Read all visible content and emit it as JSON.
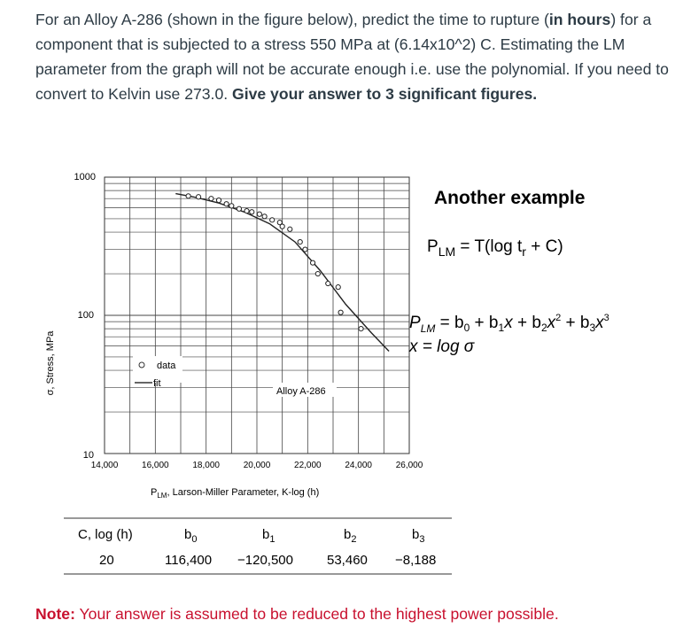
{
  "question": {
    "p1": "For an Alloy A-286 (shown in the figure below), predict the time to rupture (",
    "p1_bold": "in hours",
    "p2": ") for a component that is subjected to a stress 550 MPa at (6.14x10^2) C.  Estimating the LM parameter from the graph will not be accurate enough i.e. use the polynomial.  If you need to convert to Kelvin use 273.0.  ",
    "p2_bold": "Give your answer to 3 significant figures."
  },
  "chart": {
    "ylabel": "σ, Stress, MPa",
    "xlabel": "P",
    "xlabel_sub": "LM",
    "xlabel_rest": ", Larson-Miller Parameter, K-log (h)",
    "yticks": [
      "1000",
      "100",
      "10"
    ],
    "xticks": [
      "14,000",
      "16,000",
      "18,000",
      "20,000",
      "22,000",
      "24,000",
      "26,000"
    ],
    "legend_data": "data",
    "legend_fit": "fit",
    "alloy_label": "Alloy A-286"
  },
  "chart_data": {
    "type": "scatter",
    "xlabel": "P_LM, Larson-Miller Parameter, K-log (h)",
    "ylabel": "σ, Stress, MPa",
    "xlim": [
      14000,
      26000
    ],
    "ylim": [
      10,
      1000
    ],
    "yscale": "log",
    "series": [
      {
        "name": "data",
        "x": [
          17300,
          17700,
          18200,
          18500,
          18800,
          19000,
          19300,
          19600,
          19800,
          20100,
          20300,
          20600,
          20900,
          21000,
          21300,
          21700,
          21900,
          22200,
          22400,
          22800,
          23200,
          23300,
          24100
        ],
        "y": [
          730,
          720,
          700,
          680,
          640,
          620,
          590,
          570,
          560,
          540,
          520,
          490,
          470,
          440,
          420,
          340,
          300,
          240,
          200,
          170,
          160,
          105,
          80
        ]
      },
      {
        "name": "fit",
        "x": [
          16800,
          17500,
          18500,
          19500,
          20500,
          21500,
          22500,
          23500,
          24500,
          25200
        ],
        "y": [
          760,
          720,
          650,
          560,
          460,
          340,
          210,
          120,
          75,
          55
        ]
      }
    ]
  },
  "example": {
    "title": "Another example",
    "eq1_p": "P",
    "eq1_sub": "LM",
    "eq1_rest": " = T(log t",
    "eq1_r": "r",
    "eq1_end": " + C)",
    "eq2": "P",
    "eq2_sub": "LM",
    "eq2_rest": " = b",
    "eq3": "x = log σ"
  },
  "table": {
    "headers": [
      "C, log (h)",
      "b",
      "b",
      "b",
      "b"
    ],
    "header_subs": [
      "",
      "0",
      "1",
      "2",
      "3"
    ],
    "values": [
      "20",
      "116,400",
      "−120,500",
      "53,460",
      "−8,188"
    ]
  },
  "note": {
    "label": "Note:",
    "text": " Your answer is assumed to be reduced to the highest power possible."
  }
}
